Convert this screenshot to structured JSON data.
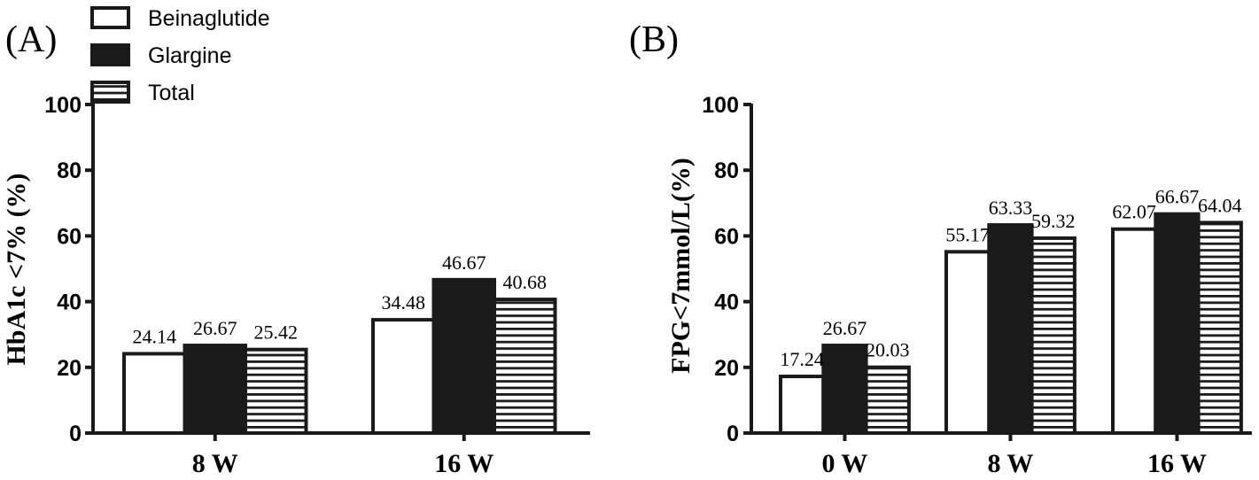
{
  "legend": [
    {
      "name": "Beinaglutide",
      "pattern": "white"
    },
    {
      "name": "Glargine",
      "pattern": "black"
    },
    {
      "name": "Total",
      "pattern": "hstripe"
    }
  ],
  "colors": {
    "outline": "#1a1a1a",
    "fill_dark": "#1a1a1a",
    "background": "#ffffff"
  },
  "chart_data": [
    {
      "type": "bar",
      "panel_label": "(A)",
      "ylabel": "HbA1c <7% (%)",
      "ylim": [
        0,
        100
      ],
      "yticks": [
        "0",
        "20",
        "40",
        "60",
        "80",
        "100"
      ],
      "categories": [
        "8 W",
        "16 W"
      ],
      "series": [
        {
          "name": "Beinaglutide",
          "values": [
            24.14,
            34.48
          ],
          "labels": [
            "24.14",
            "34.48"
          ]
        },
        {
          "name": "Glargine",
          "values": [
            26.67,
            46.67
          ],
          "labels": [
            "26.67",
            "46.67"
          ]
        },
        {
          "name": "Total",
          "values": [
            25.42,
            40.68
          ],
          "labels": [
            "25.42",
            "40.68"
          ]
        }
      ]
    },
    {
      "type": "bar",
      "panel_label": "(B)",
      "ylabel": "FPG<7mmol/L(%)",
      "ylim": [
        0,
        100
      ],
      "yticks": [
        "0",
        "20",
        "40",
        "60",
        "80",
        "100"
      ],
      "categories": [
        "0 W",
        "8 W",
        "16 W"
      ],
      "series": [
        {
          "name": "Beinaglutide",
          "values": [
            17.24,
            55.17,
            62.07
          ],
          "labels": [
            "17.24",
            "55.17",
            "62.07"
          ]
        },
        {
          "name": "Glargine",
          "values": [
            26.67,
            63.33,
            66.67
          ],
          "labels": [
            "26.67",
            "63.33",
            "66.67"
          ]
        },
        {
          "name": "Total",
          "values": [
            20.03,
            59.32,
            64.04
          ],
          "labels": [
            "20.03",
            "59.32",
            "64.04"
          ]
        }
      ]
    }
  ]
}
